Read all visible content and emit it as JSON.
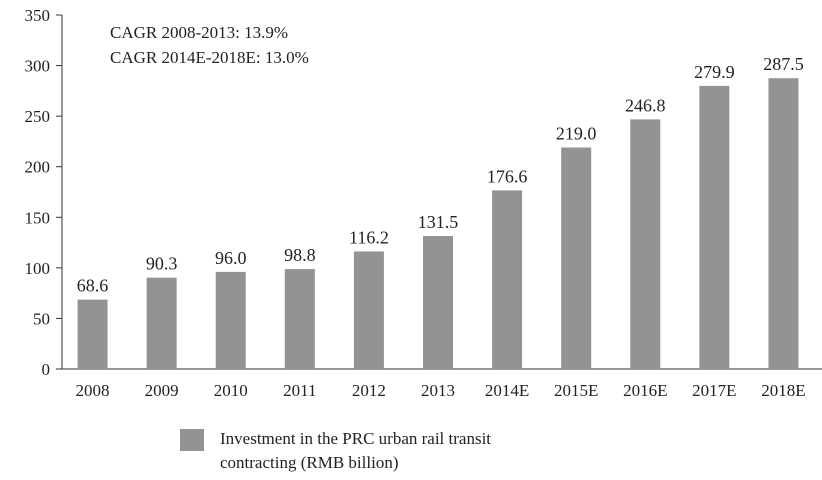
{
  "chart_data": {
    "type": "bar",
    "annotations": [
      "CAGR 2008-2013: 13.9%",
      "CAGR 2014E-2018E: 13.0%"
    ],
    "categories": [
      "2008",
      "2009",
      "2010",
      "2011",
      "2012",
      "2013",
      "2014E",
      "2015E",
      "2016E",
      "2017E",
      "2018E"
    ],
    "series": [
      {
        "name": "Investment in the PRC urban rail transit contracting (RMB billion)",
        "color": "#939393",
        "values": [
          68.6,
          90.3,
          96.0,
          98.8,
          116.2,
          131.5,
          176.6,
          219.0,
          246.8,
          279.9,
          287.5
        ],
        "value_labels": [
          "68.6",
          "90.3",
          "96.0",
          "98.8",
          "116.2",
          "131.5",
          "176.6",
          "219.0",
          "246.8",
          "279.9",
          "287.5"
        ]
      }
    ],
    "ylim": [
      0,
      350
    ],
    "yticks": [
      0,
      50,
      100,
      150,
      200,
      250,
      300,
      350
    ],
    "legend": "bottom"
  }
}
